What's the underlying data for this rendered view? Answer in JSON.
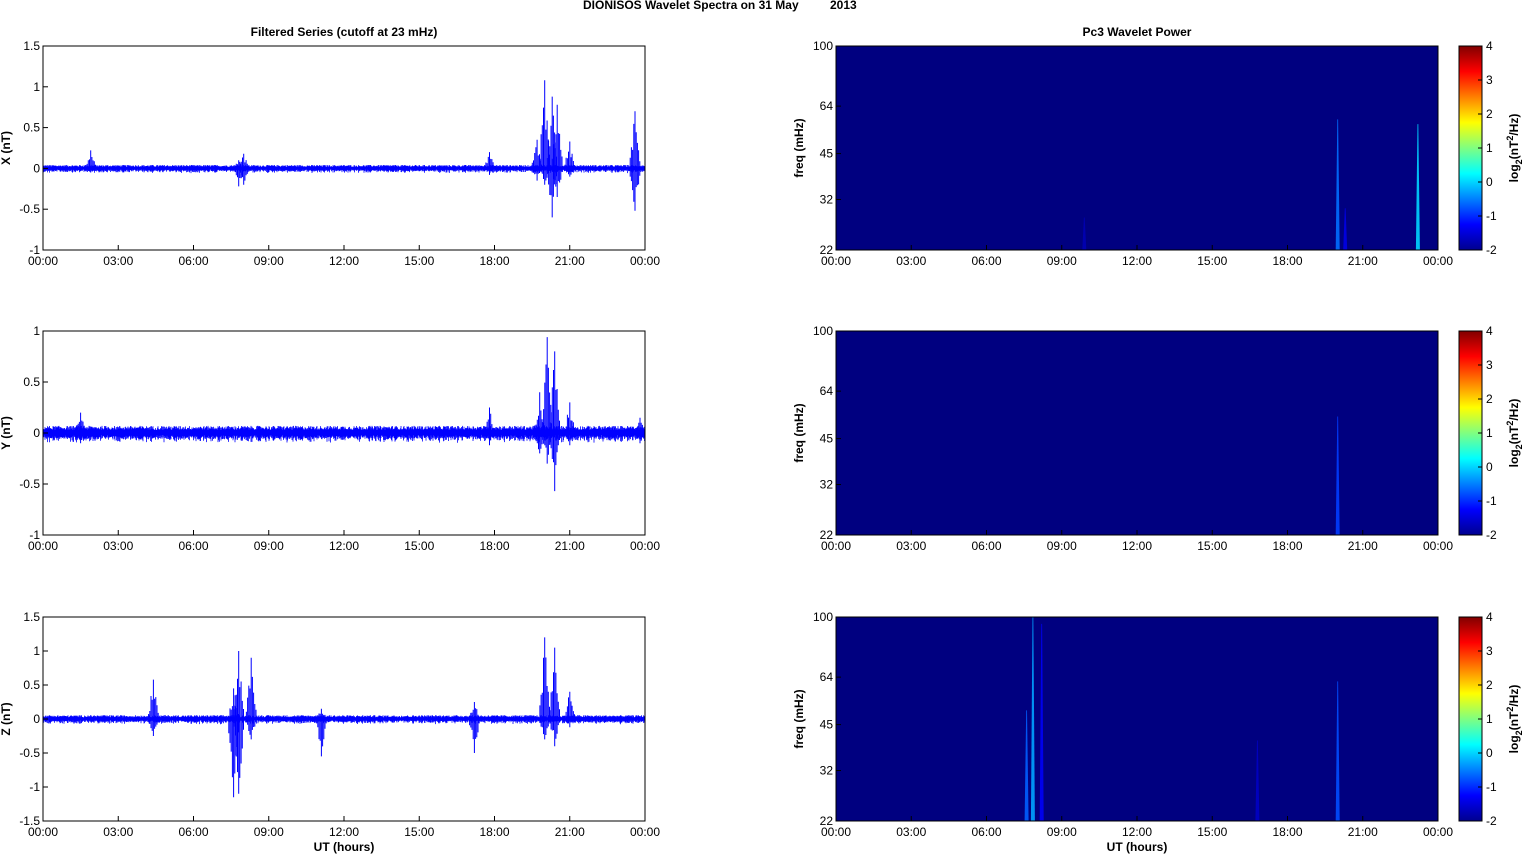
{
  "figure": {
    "title_left": "DIONISOS Wavelet Spectra on 31 May",
    "title_right": "2013",
    "left_column_title": "Filtered Series (cutoff at 23 mHz)",
    "right_column_title": "Pc3 Wavelet Power",
    "x_axis_label": "UT (hours)",
    "colorbar_label_prefix": "log",
    "colorbar_label_sub": "2",
    "colorbar_label_mid": "(nT",
    "colorbar_label_sup": "2",
    "colorbar_label_suffix": "/Hz)"
  },
  "colors": {
    "series_line": "#0000ff",
    "spectrogram_background": "#00008f",
    "axis": "#000000"
  },
  "chart_data": [
    {
      "type": "line",
      "component": "X",
      "ylabel": "X (nT)",
      "xlim": [
        "00:00",
        "24:00"
      ],
      "ylim": [
        -1,
        1.5
      ],
      "y_ticks": [
        "-1",
        "-0.5",
        "0",
        "0.5",
        "1",
        "1.5"
      ],
      "x_ticks": [
        "00:00",
        "03:00",
        "06:00",
        "09:00",
        "12:00",
        "15:00",
        "18:00",
        "21:00",
        "00:00"
      ],
      "noise_amplitude": 0.03,
      "spikes": [
        {
          "t": 1.9,
          "max": 0.22,
          "min": -0.05
        },
        {
          "t": 7.8,
          "max": 0.1,
          "min": -0.22
        },
        {
          "t": 8.0,
          "max": 0.18,
          "min": -0.2
        },
        {
          "t": 17.8,
          "max": 0.2,
          "min": -0.08
        },
        {
          "t": 19.7,
          "max": 0.35,
          "min": -0.15
        },
        {
          "t": 20.0,
          "max": 1.08,
          "min": -0.2
        },
        {
          "t": 20.3,
          "max": 0.88,
          "min": -0.6
        },
        {
          "t": 20.5,
          "max": 0.78,
          "min": -0.35
        },
        {
          "t": 21.0,
          "max": 0.33,
          "min": -0.1
        },
        {
          "t": 23.6,
          "max": 0.7,
          "min": -0.52
        }
      ]
    },
    {
      "type": "line",
      "component": "Y",
      "ylabel": "Y (nT)",
      "xlim": [
        "00:00",
        "24:00"
      ],
      "ylim": [
        -1,
        1
      ],
      "y_ticks": [
        "-1",
        "-0.5",
        "0",
        "0.5",
        "1"
      ],
      "x_ticks": [
        "00:00",
        "03:00",
        "06:00",
        "09:00",
        "12:00",
        "15:00",
        "18:00",
        "21:00",
        "00:00"
      ],
      "noise_amplitude": 0.05,
      "spikes": [
        {
          "t": 1.5,
          "max": 0.2,
          "min": -0.1
        },
        {
          "t": 17.8,
          "max": 0.25,
          "min": -0.12
        },
        {
          "t": 19.8,
          "max": 0.4,
          "min": -0.2
        },
        {
          "t": 20.1,
          "max": 0.94,
          "min": -0.3
        },
        {
          "t": 20.4,
          "max": 0.8,
          "min": -0.57
        },
        {
          "t": 21.0,
          "max": 0.3,
          "min": -0.12
        },
        {
          "t": 23.8,
          "max": 0.15,
          "min": -0.1
        }
      ]
    },
    {
      "type": "line",
      "component": "Z",
      "ylabel": "Z (nT)",
      "xlim": [
        "00:00",
        "24:00"
      ],
      "ylim": [
        -1.5,
        1.5
      ],
      "y_ticks": [
        "-1.5",
        "-1",
        "-0.5",
        "0",
        "0.5",
        "1",
        "1.5"
      ],
      "x_ticks": [
        "00:00",
        "03:00",
        "06:00",
        "09:00",
        "12:00",
        "15:00",
        "18:00",
        "21:00",
        "00:00"
      ],
      "noise_amplitude": 0.04,
      "spikes": [
        {
          "t": 4.4,
          "max": 0.58,
          "min": -0.25
        },
        {
          "t": 7.6,
          "max": 0.45,
          "min": -1.15
        },
        {
          "t": 7.8,
          "max": 1.0,
          "min": -1.1
        },
        {
          "t": 8.3,
          "max": 0.9,
          "min": -0.3
        },
        {
          "t": 11.1,
          "max": 0.15,
          "min": -0.55
        },
        {
          "t": 17.2,
          "max": 0.25,
          "min": -0.5
        },
        {
          "t": 20.0,
          "max": 1.2,
          "min": -0.3
        },
        {
          "t": 20.4,
          "max": 1.05,
          "min": -0.4
        },
        {
          "t": 21.0,
          "max": 0.4,
          "min": -0.12
        }
      ]
    },
    {
      "type": "heatmap",
      "component": "X",
      "ylabel": "freq (mHz)",
      "yscale": "log",
      "ylim": [
        22,
        100
      ],
      "y_ticks": [
        "22",
        "32",
        "45",
        "64",
        "100"
      ],
      "x_ticks": [
        "00:00",
        "03:00",
        "06:00",
        "09:00",
        "12:00",
        "15:00",
        "18:00",
        "21:00",
        "00:00"
      ],
      "colorbar_range": [
        -2,
        4
      ],
      "colorbar_ticks": [
        "-2",
        "-1",
        "0",
        "1",
        "2",
        "3",
        "4"
      ],
      "background_level": -2,
      "features": [
        {
          "t": 9.9,
          "f_top": 28,
          "level": -1.7
        },
        {
          "t": 20.0,
          "f_top": 58,
          "level": -0.6
        },
        {
          "t": 20.3,
          "f_top": 30,
          "level": -1.4
        },
        {
          "t": 23.2,
          "f_top": 56,
          "level": 0.0
        }
      ]
    },
    {
      "type": "heatmap",
      "component": "Y",
      "ylabel": "freq (mHz)",
      "yscale": "log",
      "ylim": [
        22,
        100
      ],
      "y_ticks": [
        "22",
        "32",
        "45",
        "64",
        "100"
      ],
      "x_ticks": [
        "00:00",
        "03:00",
        "06:00",
        "09:00",
        "12:00",
        "15:00",
        "18:00",
        "21:00",
        "00:00"
      ],
      "colorbar_range": [
        -2,
        4
      ],
      "colorbar_ticks": [
        "-2",
        "-1",
        "0",
        "1",
        "2",
        "3",
        "4"
      ],
      "background_level": -2,
      "features": [
        {
          "t": 20.0,
          "f_top": 53,
          "level": -0.9
        }
      ]
    },
    {
      "type": "heatmap",
      "component": "Z",
      "ylabel": "freq (mHz)",
      "yscale": "log",
      "ylim": [
        22,
        100
      ],
      "y_ticks": [
        "22",
        "32",
        "45",
        "64",
        "100"
      ],
      "x_ticks": [
        "00:00",
        "03:00",
        "06:00",
        "09:00",
        "12:00",
        "15:00",
        "18:00",
        "21:00",
        "00:00"
      ],
      "colorbar_range": [
        -2,
        4
      ],
      "colorbar_ticks": [
        "-2",
        "-1",
        "0",
        "1",
        "2",
        "3",
        "4"
      ],
      "background_level": -2,
      "features": [
        {
          "t": 7.6,
          "f_top": 50,
          "level": -0.7
        },
        {
          "t": 7.85,
          "f_top": 100,
          "level": -0.3
        },
        {
          "t": 8.2,
          "f_top": 95,
          "level": -1.3
        },
        {
          "t": 16.8,
          "f_top": 40,
          "level": -1.6
        },
        {
          "t": 20.0,
          "f_top": 62,
          "level": -0.8
        }
      ]
    }
  ]
}
